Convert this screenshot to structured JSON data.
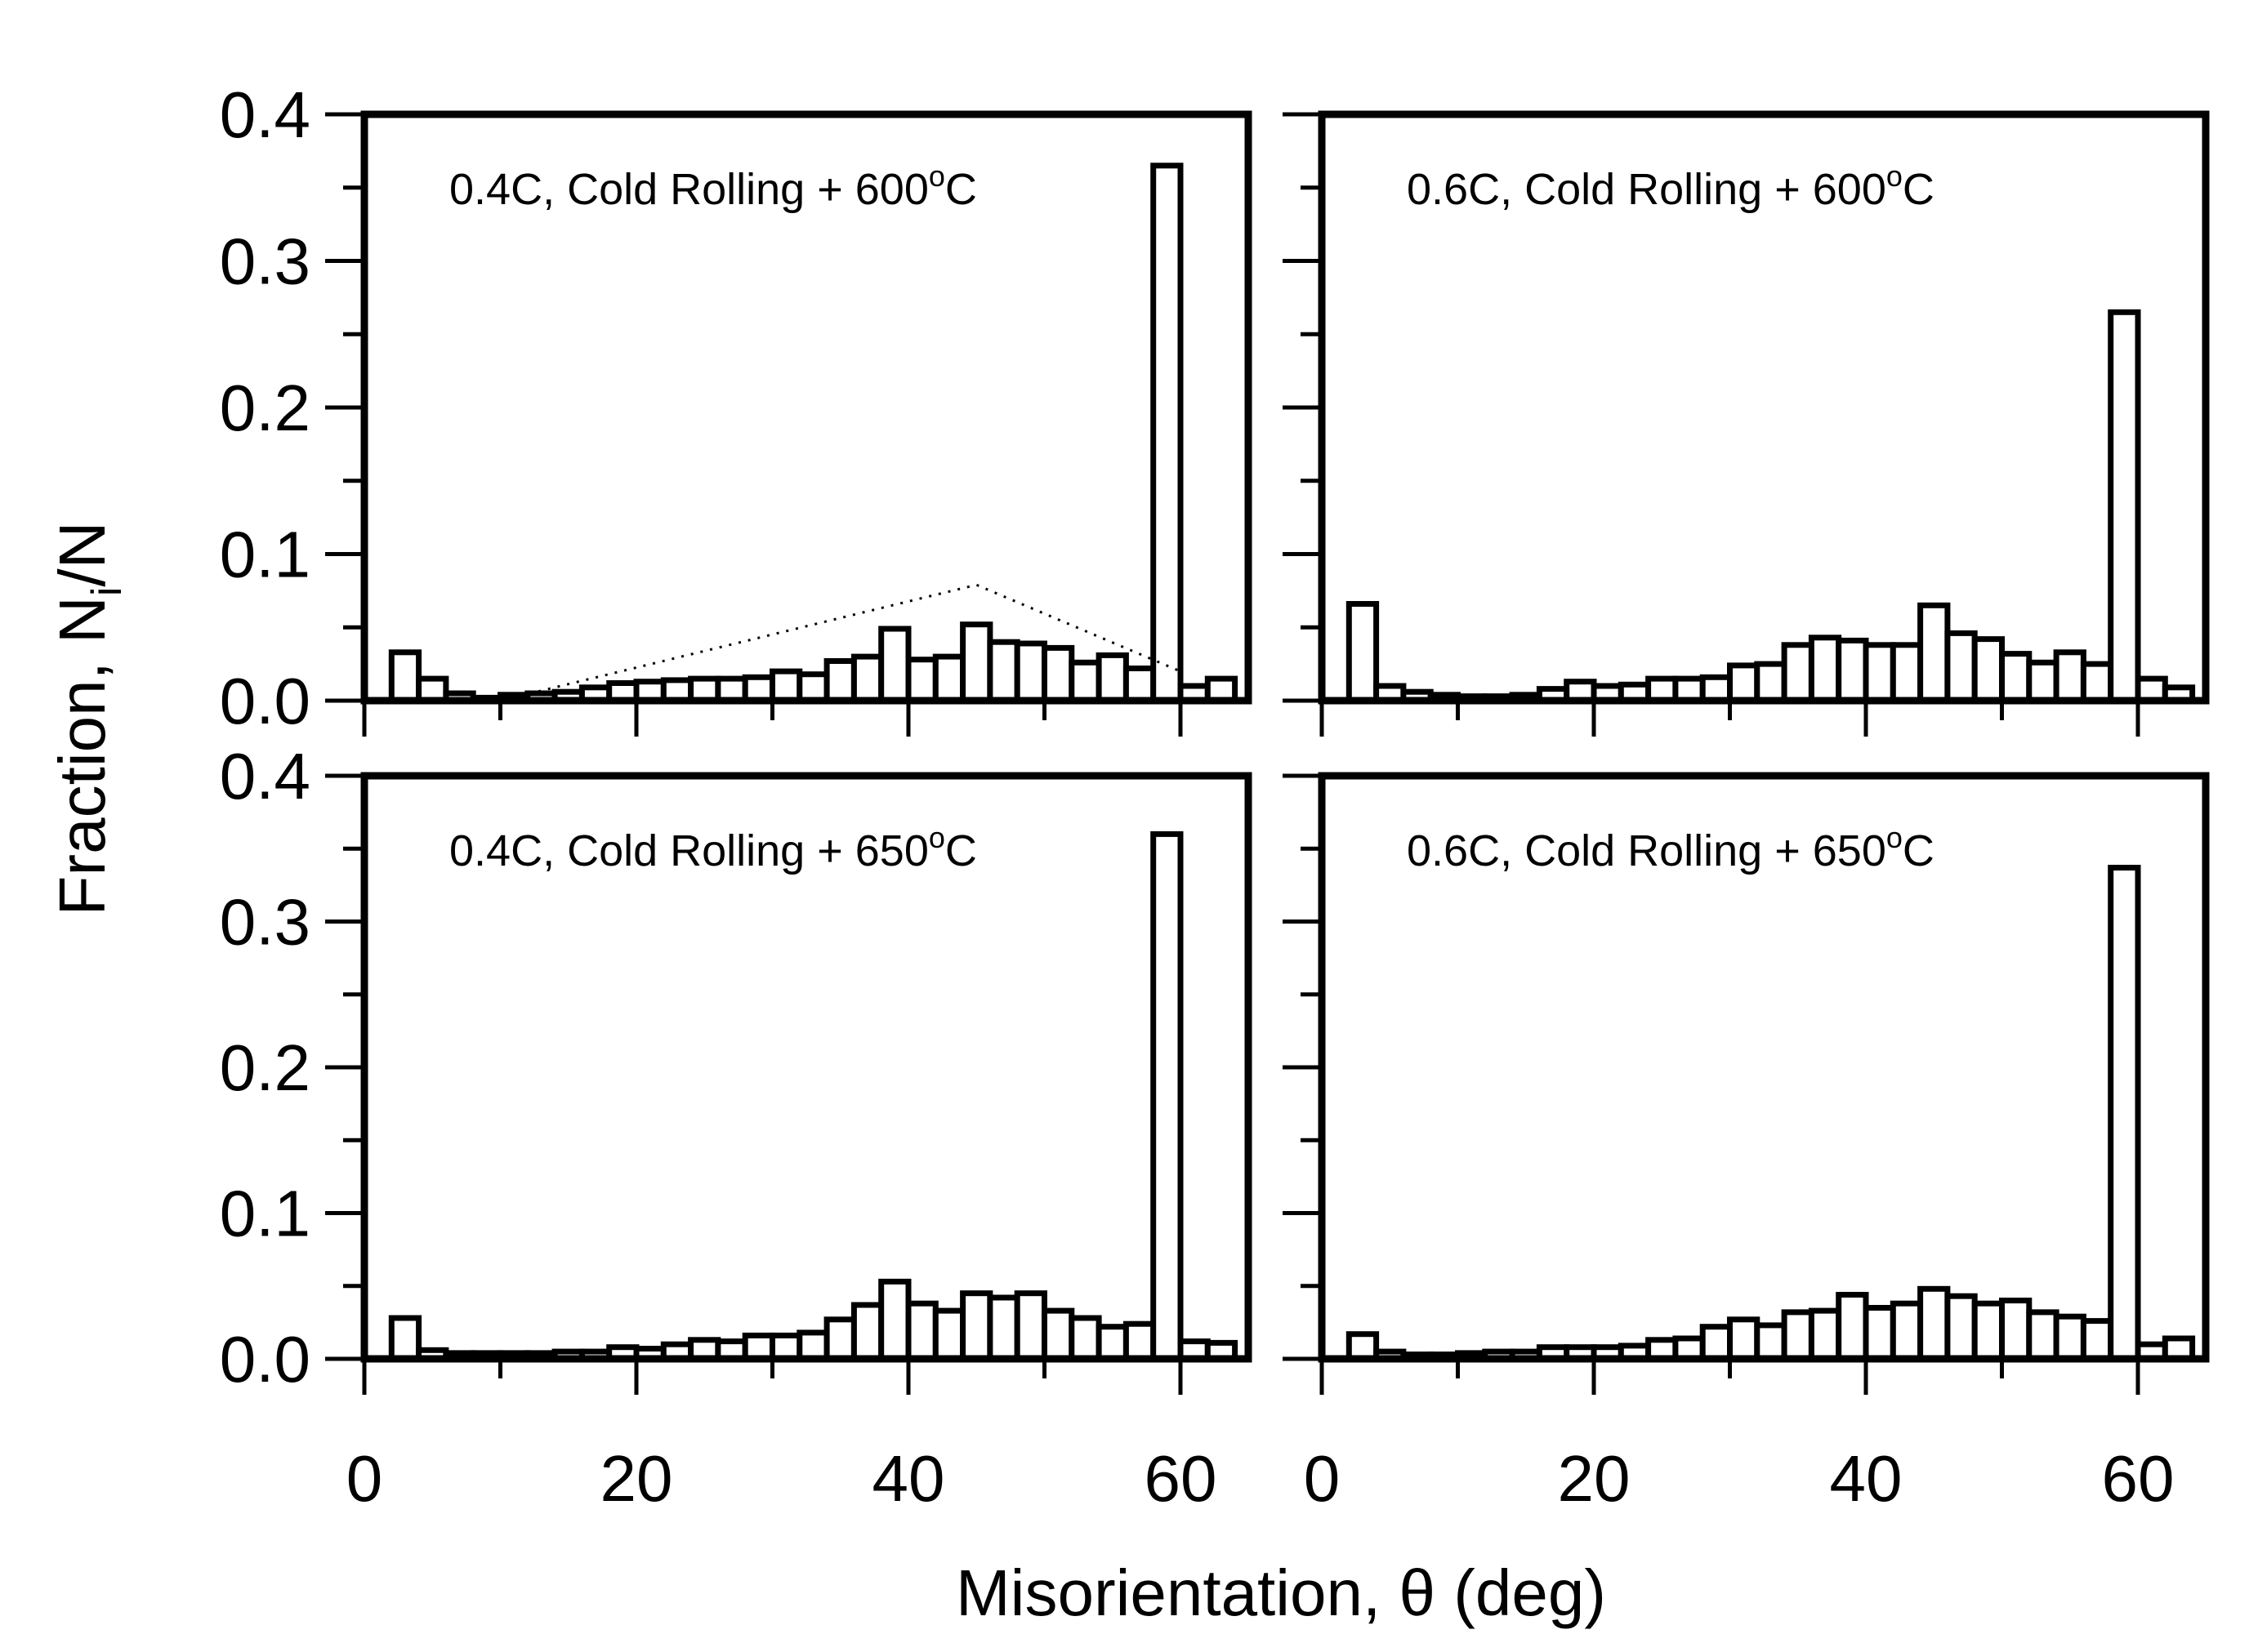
{
  "chart_data": {
    "type": "bar",
    "shared": {
      "ylabel_main": "Fraction, N",
      "ylabel_sub": "i",
      "ylabel_tail": "/N",
      "xlabel": "Misorientation, θ (deg)",
      "xlim": [
        0,
        65
      ],
      "ylim": [
        0,
        0.4
      ],
      "xticks": [
        0,
        20,
        40,
        60
      ],
      "xtick_labels": [
        "0",
        "20",
        "40",
        "60"
      ],
      "yticks": [
        0,
        0.1,
        0.2,
        0.3,
        0.4
      ],
      "ytick_labels": [
        "0.0",
        "0.1",
        "0.2",
        "0.3",
        "0.4"
      ],
      "bin_width": 2,
      "bin_centers": [
        3,
        5,
        7,
        9,
        11,
        13,
        15,
        17,
        19,
        21,
        23,
        25,
        27,
        29,
        31,
        33,
        35,
        37,
        39,
        41,
        43,
        45,
        47,
        49,
        51,
        53,
        55,
        57,
        59,
        61,
        63
      ]
    },
    "panels": [
      {
        "title_main": "0.4C, Cold Rolling + 600",
        "title_sup": "o",
        "title_tail": "C",
        "values": [
          0.033,
          0.015,
          0.005,
          0.002,
          0.004,
          0.005,
          0.006,
          0.009,
          0.012,
          0.013,
          0.014,
          0.015,
          0.015,
          0.016,
          0.02,
          0.018,
          0.027,
          0.03,
          0.049,
          0.028,
          0.03,
          0.052,
          0.04,
          0.039,
          0.036,
          0.026,
          0.031,
          0.022,
          0.365,
          0.01,
          0.015
        ],
        "reference_curve": {
          "style": "dotted",
          "x": [
            10,
            45,
            60
          ],
          "y": [
            0.0,
            0.079,
            0.02
          ]
        }
      },
      {
        "title_main": "0.6C, Cold Rolling + 600",
        "title_sup": "o",
        "title_tail": "C",
        "values": [
          0.066,
          0.01,
          0.006,
          0.004,
          0.003,
          0.003,
          0.004,
          0.008,
          0.013,
          0.01,
          0.011,
          0.015,
          0.015,
          0.016,
          0.024,
          0.025,
          0.038,
          0.043,
          0.041,
          0.038,
          0.038,
          0.065,
          0.046,
          0.042,
          0.032,
          0.026,
          0.033,
          0.025,
          0.265,
          0.015,
          0.009
        ]
      },
      {
        "title_main": "0.4C, Cold Rolling + 650",
        "title_sup": "o",
        "title_tail": "C",
        "values": [
          0.028,
          0.006,
          0.004,
          0.004,
          0.004,
          0.004,
          0.005,
          0.005,
          0.008,
          0.007,
          0.01,
          0.013,
          0.012,
          0.016,
          0.016,
          0.018,
          0.027,
          0.037,
          0.053,
          0.038,
          0.033,
          0.045,
          0.042,
          0.045,
          0.033,
          0.028,
          0.022,
          0.024,
          0.36,
          0.012,
          0.011
        ]
      },
      {
        "title_main": "0.6C, Cold Rolling + 650",
        "title_sup": "o",
        "title_tail": "C",
        "values": [
          0.017,
          0.005,
          0.003,
          0.003,
          0.004,
          0.005,
          0.005,
          0.008,
          0.008,
          0.008,
          0.009,
          0.013,
          0.014,
          0.022,
          0.027,
          0.023,
          0.032,
          0.033,
          0.044,
          0.035,
          0.038,
          0.048,
          0.043,
          0.038,
          0.04,
          0.032,
          0.029,
          0.026,
          0.337,
          0.01,
          0.014
        ]
      }
    ]
  }
}
